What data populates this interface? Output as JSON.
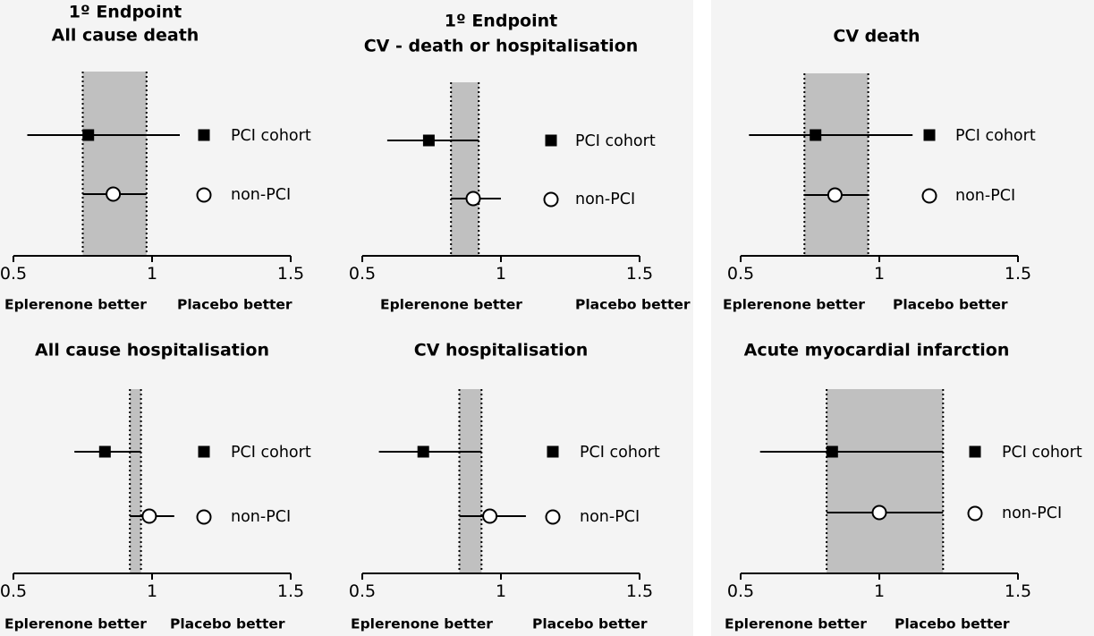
{
  "colors": {
    "band_fill": "#c0c0c0",
    "panel_background": "#f4f4f4",
    "marker_pci": "#000000",
    "marker_nonpci": "#ffffff",
    "line": "#000000"
  },
  "icons": {
    "pci_marker": "filled-square",
    "nonpci_marker": "open-circle"
  },
  "chart_data": [
    {
      "type": "forest",
      "title": [
        "1º Endpoint",
        "All cause death"
      ],
      "xlim": [
        0.5,
        1.5
      ],
      "xticks": [
        "0.5",
        "1",
        "1.5"
      ],
      "left_note": "Eplerenone better",
      "right_note": "Placebo better",
      "band": [
        0.75,
        0.98
      ],
      "series": [
        {
          "name": "PCI cohort",
          "marker": "square",
          "estimate": 0.77,
          "ci": [
            0.55,
            1.1
          ]
        },
        {
          "name": "non-PCI",
          "marker": "circle",
          "estimate": 0.86,
          "ci": [
            0.75,
            0.98
          ]
        }
      ]
    },
    {
      "type": "forest",
      "title": [
        "1º Endpoint",
        "CV - death or hospitalisation"
      ],
      "xlim": [
        0.5,
        1.5
      ],
      "xticks": [
        "0.5",
        "1",
        "1.5"
      ],
      "left_note": "Eplerenone better",
      "right_note": "Placebo better",
      "band": [
        0.82,
        0.92
      ],
      "series": [
        {
          "name": "PCI cohort",
          "marker": "square",
          "estimate": 0.74,
          "ci": [
            0.59,
            0.92
          ]
        },
        {
          "name": "non-PCI",
          "marker": "circle",
          "estimate": 0.9,
          "ci": [
            0.82,
            1.0
          ]
        }
      ]
    },
    {
      "type": "forest",
      "title": [
        "CV death"
      ],
      "xlim": [
        0.5,
        1.5
      ],
      "xticks": [
        "0.5",
        "1",
        "1.5"
      ],
      "left_note": "Eplerenone better",
      "right_note": "Placebo better",
      "band": [
        0.73,
        0.96
      ],
      "series": [
        {
          "name": "PCI cohort",
          "marker": "square",
          "estimate": 0.77,
          "ci": [
            0.53,
            1.12
          ]
        },
        {
          "name": "non-PCI",
          "marker": "circle",
          "estimate": 0.84,
          "ci": [
            0.73,
            0.96
          ]
        }
      ]
    },
    {
      "type": "forest",
      "title": [
        "All cause hospitalisation"
      ],
      "xlim": [
        0.5,
        1.5
      ],
      "xticks": [
        "0.5",
        "1",
        "1.5"
      ],
      "left_note": "Eplerenone better",
      "right_note": "Placebo better",
      "band": [
        0.92,
        0.96
      ],
      "series": [
        {
          "name": "PCI cohort",
          "marker": "square",
          "estimate": 0.83,
          "ci": [
            0.72,
            0.96
          ]
        },
        {
          "name": "non-PCI",
          "marker": "circle",
          "estimate": 0.99,
          "ci": [
            0.92,
            1.08
          ]
        }
      ]
    },
    {
      "type": "forest",
      "title": [
        "CV hospitalisation"
      ],
      "xlim": [
        0.5,
        1.5
      ],
      "xticks": [
        "0.5",
        "1",
        "1.5"
      ],
      "left_note": "Eplerenone better",
      "right_note": "Placebo better",
      "band": [
        0.85,
        0.93
      ],
      "series": [
        {
          "name": "PCI cohort",
          "marker": "square",
          "estimate": 0.72,
          "ci": [
            0.56,
            0.93
          ]
        },
        {
          "name": "non-PCI",
          "marker": "circle",
          "estimate": 0.96,
          "ci": [
            0.85,
            1.09
          ]
        }
      ]
    },
    {
      "type": "forest",
      "title": [
        "Acute myocardial infarction"
      ],
      "xlim": [
        0.5,
        1.5
      ],
      "xticks": [
        "0.5",
        "1",
        "1.5"
      ],
      "left_note": "Eplerenone better",
      "right_note": "Placebo better",
      "band": [
        0.81,
        1.23
      ],
      "series": [
        {
          "name": "PCI cohort",
          "marker": "square",
          "estimate": 0.83,
          "ci": [
            0.57,
            1.23
          ]
        },
        {
          "name": "non-PCI",
          "marker": "circle",
          "estimate": 1.0,
          "ci": [
            0.81,
            1.23
          ]
        }
      ]
    }
  ]
}
